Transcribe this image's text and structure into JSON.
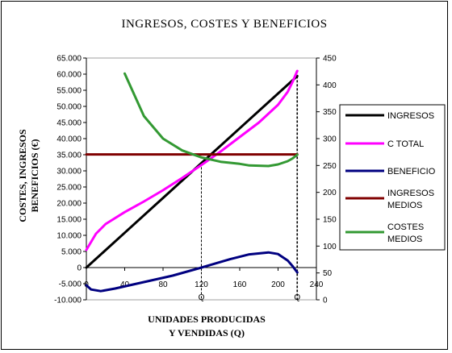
{
  "chart_data": {
    "type": "line",
    "title": "INGRESOS, COSTES Y BENEFICIOS",
    "xlabel_lines": [
      "UNIDADES PRODUCIDAS",
      "Y VENDIDAS (Q)"
    ],
    "ylabel_lines": [
      "COSTES, INGRESOS",
      "BENEFICIOS (€)"
    ],
    "x_ticks": [
      "0",
      "40",
      "80",
      "120",
      "160",
      "200",
      "240"
    ],
    "xlim": [
      0,
      240
    ],
    "y_left_ticks": [
      "65.000",
      "60.000",
      "55.000",
      "50.000",
      "45.000",
      "40.000",
      "35.000",
      "30.000",
      "25.000",
      "20.000",
      "15.000",
      "10.000",
      "5.000",
      "0",
      "-5.000",
      "-10.000"
    ],
    "ylim_left": [
      -10000,
      65000
    ],
    "y_right_ticks": [
      "450",
      "400",
      "350",
      "300",
      "250",
      "200",
      "150",
      "100",
      "50",
      "0"
    ],
    "ylim_right": [
      0,
      450
    ],
    "q_marks": [
      {
        "label": "Q",
        "x": 120
      },
      {
        "label": "Q",
        "x": 220
      }
    ],
    "series": [
      {
        "name": "INGRESOS",
        "axis": "left",
        "color": "#000000",
        "x": [
          0,
          40,
          80,
          120,
          160,
          200,
          220
        ],
        "y": [
          0,
          10800,
          21600,
          32400,
          43200,
          54000,
          59400
        ]
      },
      {
        "name": "C TOTAL",
        "axis": "left",
        "color": "#ff00ff",
        "x": [
          0,
          10,
          20,
          40,
          60,
          80,
          100,
          120,
          140,
          160,
          180,
          200,
          210,
          215,
          220
        ],
        "y": [
          5500,
          10500,
          13500,
          17200,
          20500,
          24000,
          27800,
          31800,
          36000,
          40500,
          45000,
          50500,
          54500,
          57500,
          61000
        ]
      },
      {
        "name": "BENEFICIO",
        "axis": "left",
        "color": "#000080",
        "x": [
          0,
          5,
          15,
          30,
          60,
          90,
          120,
          150,
          170,
          190,
          200,
          210,
          215,
          220
        ],
        "y": [
          -5500,
          -6800,
          -7300,
          -6500,
          -4500,
          -2500,
          0,
          2600,
          4100,
          4700,
          4200,
          2200,
          500,
          -1500
        ]
      },
      {
        "name": "INGRESOS\nMEDIOS",
        "axis": "left",
        "color": "#800000",
        "x": [
          0,
          220
        ],
        "y": [
          35100,
          35100
        ]
      },
      {
        "name": "COSTES\nMEDIOS",
        "axis": "right",
        "color": "#339933",
        "x": [
          40,
          60,
          80,
          100,
          120,
          140,
          160,
          170,
          190,
          200,
          210,
          215,
          220
        ],
        "y": [
          421,
          342,
          300,
          278,
          265,
          257,
          253,
          250,
          249,
          252,
          258,
          263,
          270
        ]
      }
    ],
    "legend": "right",
    "grid": false
  }
}
